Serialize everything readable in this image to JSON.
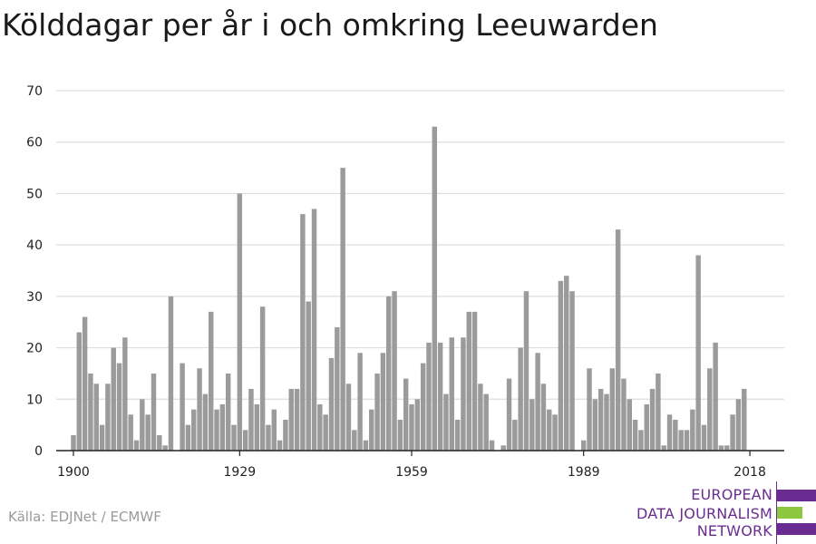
{
  "title": "Kölddagar per år i och omkring Leeuwarden",
  "source": "Källa: EDJNet / ECMWF",
  "logo": {
    "lines": [
      "EUROPEAN",
      "DATA JOURNALISM",
      "NETWORK"
    ],
    "colors": [
      "#6b2c91",
      "#8dc63f",
      "#6b2c91"
    ]
  },
  "colors": {
    "bar": "#9b9b9b",
    "grid": "#dddddd",
    "axis": "#222222",
    "text": "#222222"
  },
  "chart_data": {
    "type": "bar",
    "title": "Kölddagar per år i och omkring Leeuwarden",
    "xlabel": "",
    "ylabel": "",
    "ylim": [
      0,
      70
    ],
    "yticks": [
      0,
      10,
      20,
      30,
      40,
      50,
      60,
      70
    ],
    "xticks": [
      1900,
      1929,
      1959,
      1989,
      2018
    ],
    "xlim": [
      1897,
      2024
    ],
    "grid": true,
    "x": [
      1900,
      1901,
      1902,
      1903,
      1904,
      1905,
      1906,
      1907,
      1908,
      1909,
      1910,
      1911,
      1912,
      1913,
      1914,
      1915,
      1916,
      1917,
      1918,
      1919,
      1920,
      1921,
      1922,
      1923,
      1924,
      1925,
      1926,
      1927,
      1928,
      1929,
      1930,
      1931,
      1932,
      1933,
      1934,
      1935,
      1936,
      1937,
      1938,
      1939,
      1940,
      1941,
      1942,
      1943,
      1944,
      1945,
      1946,
      1947,
      1948,
      1949,
      1950,
      1951,
      1952,
      1953,
      1954,
      1955,
      1956,
      1957,
      1958,
      1959,
      1960,
      1961,
      1962,
      1963,
      1964,
      1965,
      1966,
      1967,
      1968,
      1969,
      1970,
      1971,
      1972,
      1973,
      1974,
      1975,
      1976,
      1977,
      1978,
      1979,
      1980,
      1981,
      1982,
      1983,
      1984,
      1985,
      1986,
      1987,
      1988,
      1989,
      1990,
      1991,
      1992,
      1993,
      1994,
      1995,
      1996,
      1997,
      1998,
      1999,
      2000,
      2001,
      2002,
      2003,
      2004,
      2005,
      2006,
      2007,
      2008,
      2009,
      2010,
      2011,
      2012,
      2013,
      2014,
      2015,
      2016,
      2017,
      2018
    ],
    "values": [
      3,
      23,
      26,
      15,
      13,
      5,
      13,
      20,
      17,
      22,
      7,
      2,
      10,
      7,
      15,
      3,
      1,
      30,
      0,
      17,
      5,
      8,
      16,
      11,
      27,
      8,
      9,
      15,
      5,
      50,
      4,
      12,
      9,
      28,
      5,
      8,
      2,
      6,
      12,
      12,
      46,
      29,
      47,
      9,
      7,
      18,
      24,
      55,
      13,
      4,
      19,
      2,
      8,
      15,
      19,
      30,
      31,
      6,
      14,
      9,
      10,
      17,
      21,
      63,
      21,
      11,
      22,
      6,
      22,
      27,
      27,
      13,
      11,
      2,
      0,
      1,
      14,
      6,
      20,
      31,
      10,
      19,
      13,
      8,
      7,
      33,
      34,
      31,
      0,
      2,
      16,
      10,
      12,
      11,
      16,
      43,
      14,
      10,
      6,
      4,
      9,
      12,
      15,
      1,
      7,
      6,
      4,
      4,
      8,
      38,
      5,
      16,
      21,
      1,
      1,
      7,
      10,
      12,
      0
    ]
  }
}
